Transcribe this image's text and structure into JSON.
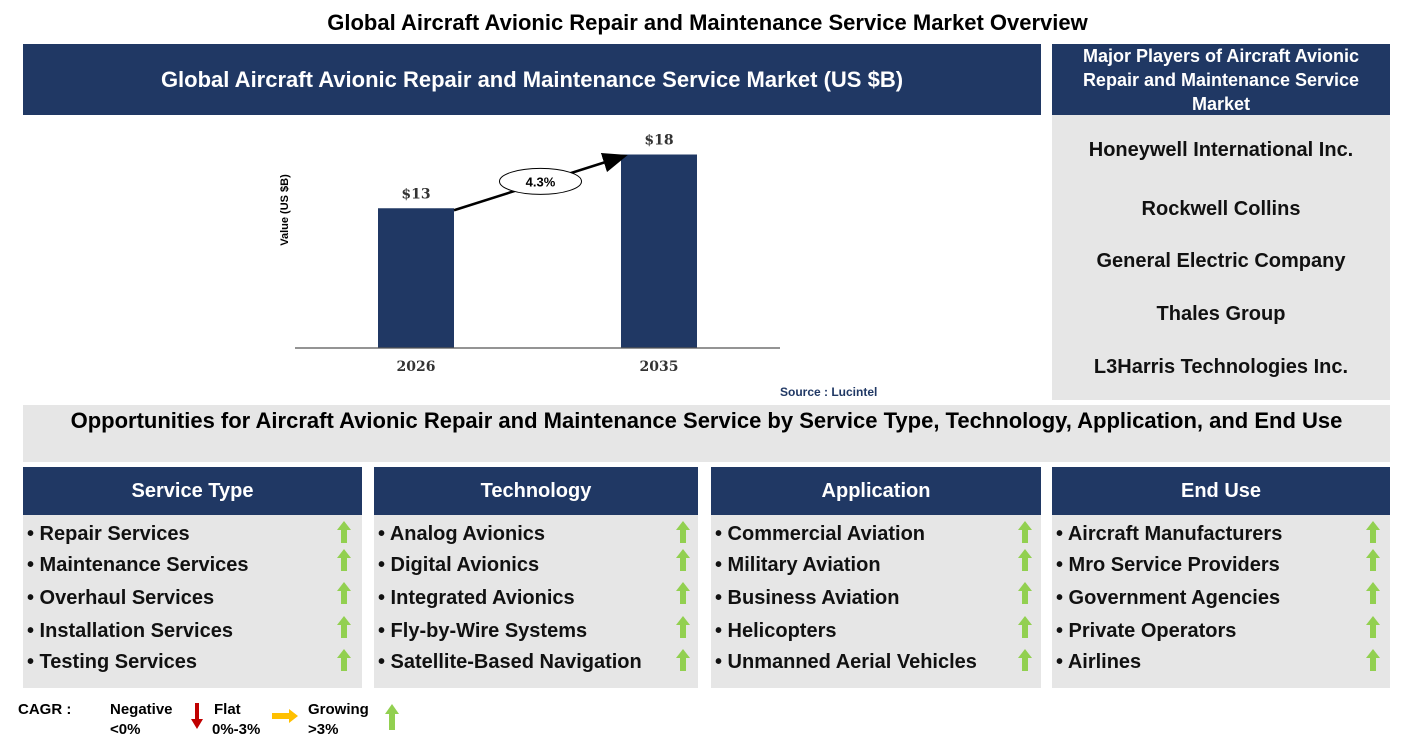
{
  "title": "Global Aircraft Avionic Repair and Maintenance Service Market Overview",
  "chart_header": "Global Aircraft Avionic Repair and Maintenance Service Market (US $B)",
  "chart_data": {
    "type": "bar",
    "categories": [
      "2026",
      "2035"
    ],
    "values": [
      13,
      18
    ],
    "value_labels": [
      "$13",
      "$18"
    ],
    "ylabel": "Value (US $B)",
    "xlabel": "",
    "ylim": [
      0,
      20
    ],
    "cagr_label": "4.3%",
    "source": "Source : Lucintel",
    "bar_color": "#203864",
    "grid": false
  },
  "players": {
    "header": "Major Players of Aircraft Avionic Repair and Maintenance Service Market",
    "items": [
      "Honeywell International Inc.",
      "Rockwell Collins",
      "General Electric Company",
      "Thales Group",
      "L3Harris Technologies Inc."
    ]
  },
  "opportunities_title": "Opportunities for Aircraft Avionic Repair and Maintenance Service by Service Type, Technology, Application, and End Use",
  "categories": [
    {
      "name": "Service Type",
      "items": [
        "• Repair Services",
        "• Maintenance Services",
        "• Overhaul Services",
        "• Installation Services",
        "• Testing Services"
      ]
    },
    {
      "name": "Technology",
      "items": [
        "• Analog Avionics",
        "• Digital Avionics",
        "• Integrated Avionics",
        "• Fly-by-Wire Systems",
        "• Satellite-Based Navigation"
      ]
    },
    {
      "name": "Application",
      "items": [
        "• Commercial Aviation",
        "• Military Aviation",
        "• Business Aviation",
        "• Helicopters",
        "• Unmanned Aerial Vehicles"
      ]
    },
    {
      "name": "End Use",
      "items": [
        "• Aircraft Manufacturers",
        "• Mro Service Providers",
        "• Government Agencies",
        "• Private Operators",
        "• Airlines"
      ]
    }
  ],
  "trend_icon": "green-up-arrow-icon",
  "legend": {
    "label": "CAGR :",
    "negative": [
      "Negative",
      "<0%"
    ],
    "flat": [
      "Flat",
      "0%-3%"
    ],
    "growing": [
      "Growing",
      ">3%"
    ]
  },
  "colors": {
    "navy": "#203864",
    "panel_grey": "#e6e6e6",
    "up_green": "#92d050",
    "down_red": "#c00000",
    "flat_yellow": "#ffc000"
  }
}
